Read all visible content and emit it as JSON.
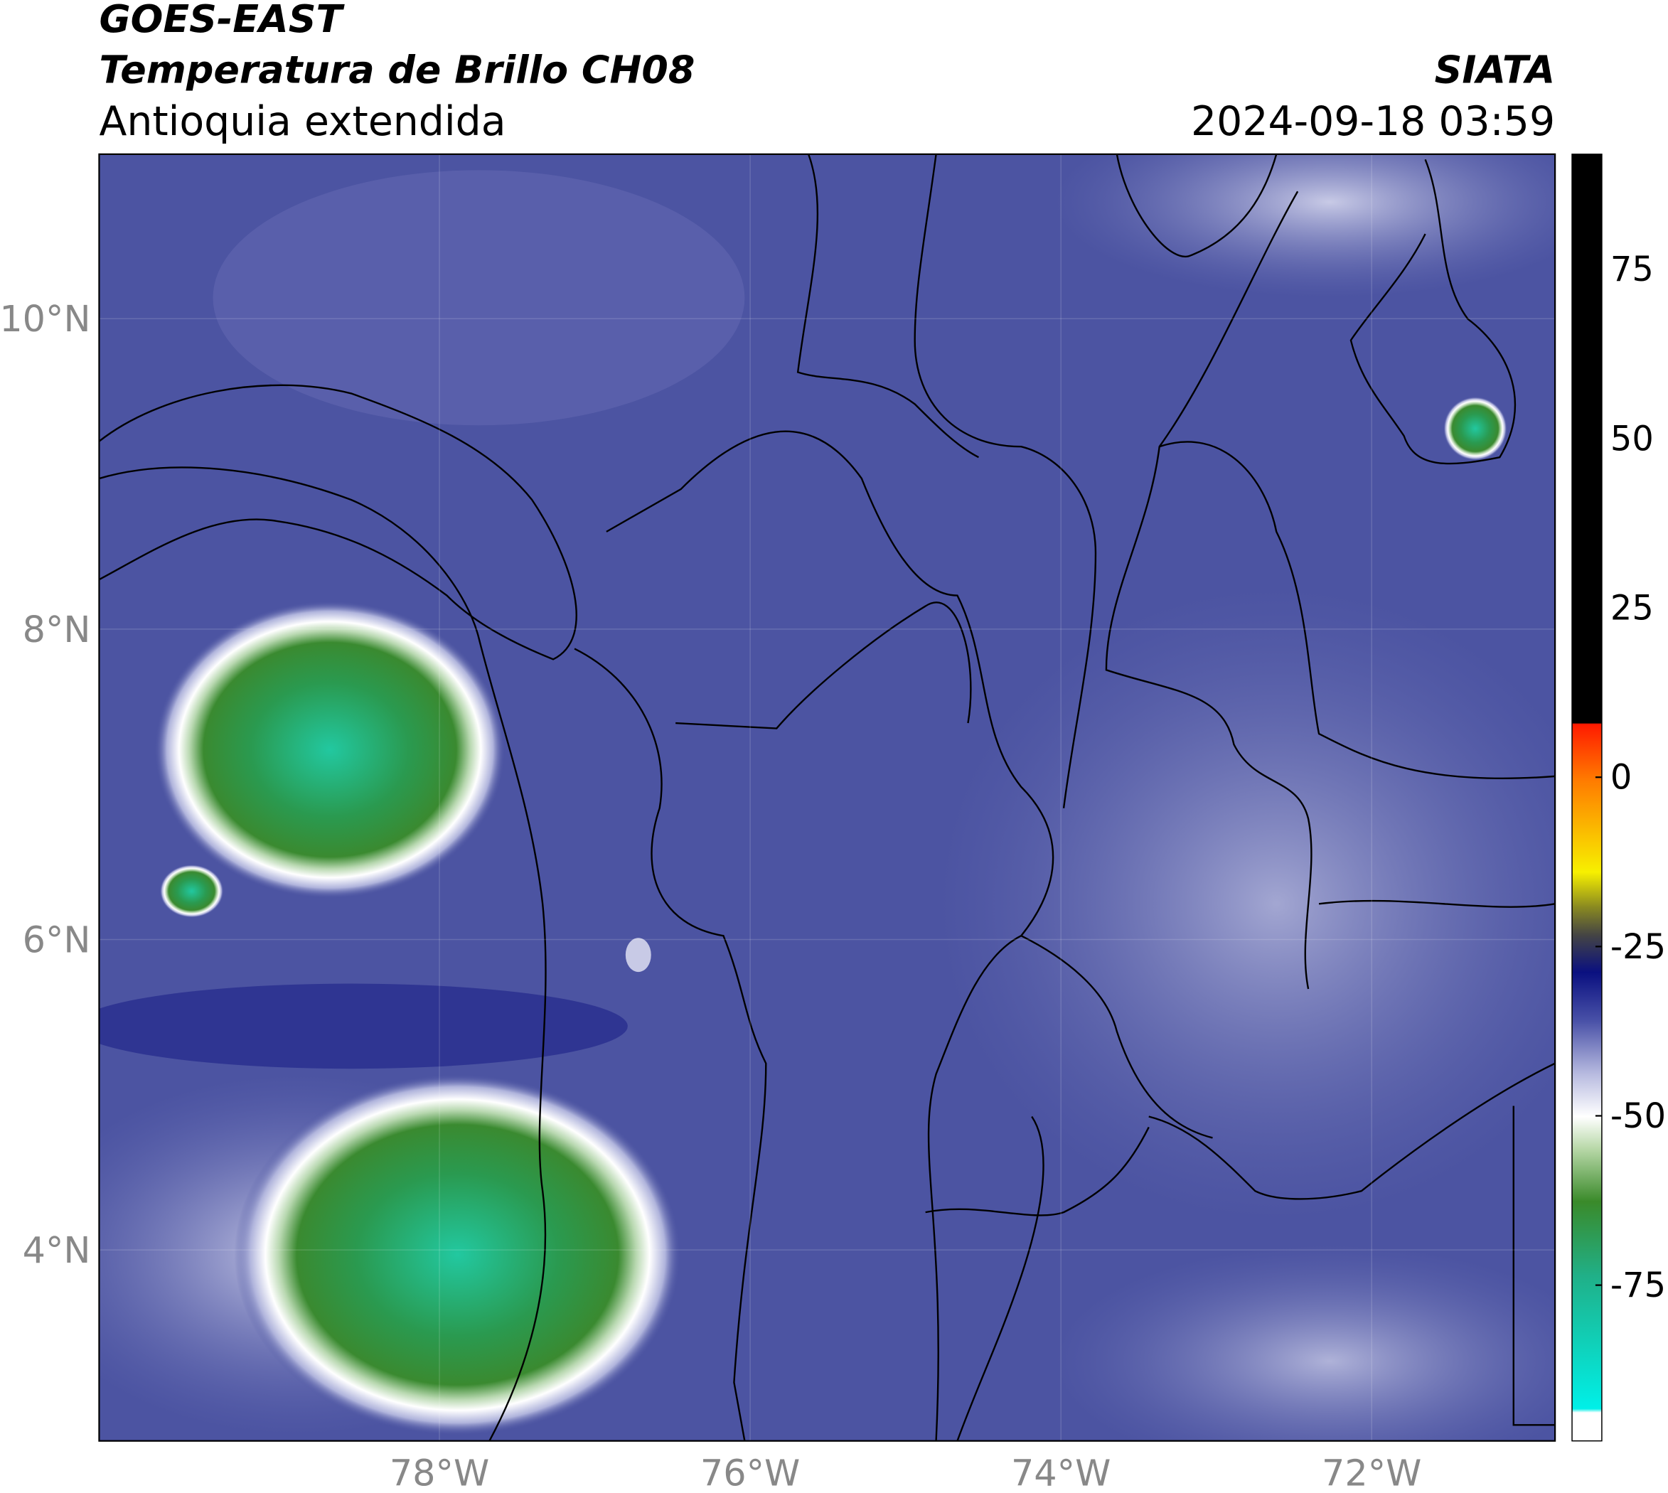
{
  "header": {
    "satellite": "GOES-EAST",
    "product": "Temperatura de Brillo CH08",
    "region": "Antioquia extendida",
    "agency": "SIATA",
    "datetime": "2024-09-18 03:59"
  },
  "map": {
    "xlim": [
      -80.19,
      -70.82
    ],
    "ylim": [
      2.77,
      11.06
    ],
    "xticks": [
      {
        "value": -78,
        "label": "78°W"
      },
      {
        "value": -76,
        "label": "76°W"
      },
      {
        "value": -74,
        "label": "74°W"
      },
      {
        "value": -72,
        "label": "72°W"
      }
    ],
    "yticks": [
      {
        "value": 10,
        "label": "10°N"
      },
      {
        "value": 8,
        "label": "8°N"
      },
      {
        "value": 6,
        "label": "6°N"
      },
      {
        "value": 4,
        "label": "4°N"
      }
    ],
    "grid": true
  },
  "colorbar": {
    "clim": [
      -98,
      92
    ],
    "ticks": [
      75,
      50,
      25,
      0,
      -25,
      -50,
      -75
    ]
  }
}
